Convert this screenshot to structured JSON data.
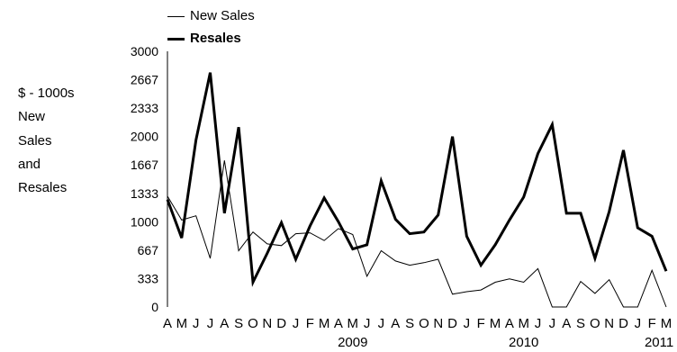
{
  "chart_data": {
    "type": "line",
    "ylabel_lines": [
      "$ - 1000s",
      "New",
      "Sales",
      "and",
      "Resales"
    ],
    "ylim": [
      0,
      3000
    ],
    "yticks": [
      "0",
      "333",
      "667",
      "1000",
      "1333",
      "1667",
      "2000",
      "2333",
      "2667",
      "3000"
    ],
    "ytick_values": [
      0,
      333,
      667,
      1000,
      1333,
      1667,
      2000,
      2333,
      2667,
      3000
    ],
    "categories": [
      "A",
      "M",
      "J",
      "J",
      "A",
      "S",
      "O",
      "N",
      "D",
      "J",
      "F",
      "M",
      "A",
      "M",
      "J",
      "J",
      "A",
      "S",
      "O",
      "N",
      "D",
      "J",
      "F",
      "M",
      "A",
      "M",
      "J",
      "J",
      "A",
      "S",
      "O",
      "N",
      "D",
      "J",
      "F",
      "M"
    ],
    "year_labels": [
      {
        "label": "2009",
        "at_index": 13
      },
      {
        "label": "2010",
        "at_index": 25
      },
      {
        "label": "2011",
        "at_index": 34.5
      }
    ],
    "legend_position": "top-left",
    "grid": false,
    "series": [
      {
        "name": "New Sales",
        "weight": "thin",
        "values": [
          1300,
          1020,
          1070,
          570,
          1720,
          660,
          880,
          740,
          720,
          860,
          870,
          780,
          920,
          850,
          360,
          660,
          540,
          490,
          520,
          560,
          150,
          180,
          200,
          290,
          330,
          290,
          450,
          0,
          0,
          300,
          160,
          320,
          0,
          0,
          430,
          0
        ]
      },
      {
        "name": "Resales",
        "weight": "bold",
        "values": [
          1260,
          810,
          1960,
          2750,
          1100,
          2110,
          290,
          630,
          990,
          560,
          950,
          1280,
          1000,
          680,
          730,
          1480,
          1030,
          860,
          880,
          1080,
          2000,
          830,
          490,
          730,
          1020,
          1290,
          1800,
          2140,
          1100,
          1100,
          570,
          1120,
          1840,
          930,
          830,
          420
        ]
      }
    ]
  }
}
